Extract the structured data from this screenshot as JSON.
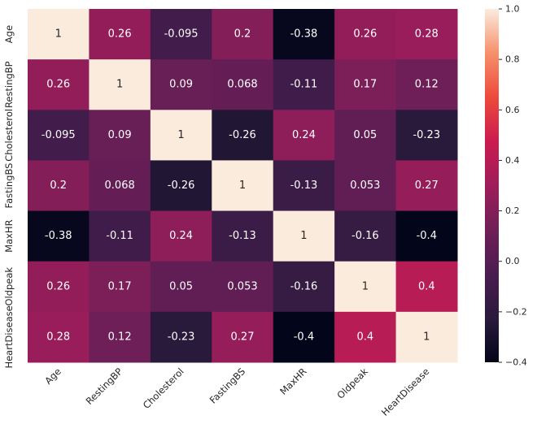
{
  "chart_data": {
    "type": "heatmap",
    "rows": [
      "Age",
      "RestingBP",
      "Cholesterol",
      "FastingBS",
      "MaxHR",
      "Oldpeak",
      "HeartDisease"
    ],
    "columns": [
      "Age",
      "RestingBP",
      "Cholesterol",
      "FastingBS",
      "MaxHR",
      "Oldpeak",
      "HeartDisease"
    ],
    "values": [
      [
        1,
        0.26,
        -0.095,
        0.2,
        -0.38,
        0.26,
        0.28
      ],
      [
        0.26,
        1,
        0.09,
        0.068,
        -0.11,
        0.17,
        0.12
      ],
      [
        -0.095,
        0.09,
        1,
        -0.26,
        0.24,
        0.05,
        -0.23
      ],
      [
        0.2,
        0.068,
        -0.26,
        1,
        -0.13,
        0.053,
        0.27
      ],
      [
        -0.38,
        -0.11,
        0.24,
        -0.13,
        1,
        -0.16,
        -0.4
      ],
      [
        0.26,
        0.17,
        0.05,
        0.053,
        -0.16,
        1,
        0.4
      ],
      [
        0.28,
        0.12,
        -0.23,
        0.27,
        -0.4,
        0.4,
        1
      ]
    ],
    "labels": [
      [
        "1",
        "0.26",
        "-0.095",
        "0.2",
        "-0.38",
        "0.26",
        "0.28"
      ],
      [
        "0.26",
        "1",
        "0.09",
        "0.068",
        "-0.11",
        "0.17",
        "0.12"
      ],
      [
        "-0.095",
        "0.09",
        "1",
        "-0.26",
        "0.24",
        "0.05",
        "-0.23"
      ],
      [
        "0.2",
        "0.068",
        "-0.26",
        "1",
        "-0.13",
        "0.053",
        "0.27"
      ],
      [
        "-0.38",
        "-0.11",
        "0.24",
        "-0.13",
        "1",
        "-0.16",
        "-0.4"
      ],
      [
        "0.26",
        "0.17",
        "0.05",
        "0.053",
        "-0.16",
        "1",
        "0.4"
      ],
      [
        "0.28",
        "0.12",
        "-0.23",
        "0.27",
        "-0.4",
        "0.4",
        "1"
      ]
    ],
    "vmin": -0.4,
    "vmax": 1.0,
    "colormap": "rocket",
    "colorbar": {
      "ticks": [
        1.0,
        0.8,
        0.6,
        0.4,
        0.2,
        0.0,
        -0.2,
        -0.4
      ],
      "tick_labels": [
        "1.0",
        "0.8",
        "0.6",
        "0.4",
        "0.2",
        "0.0",
        "−0.2",
        "−0.4"
      ]
    },
    "title": "",
    "xlabel": "",
    "ylabel": ""
  }
}
